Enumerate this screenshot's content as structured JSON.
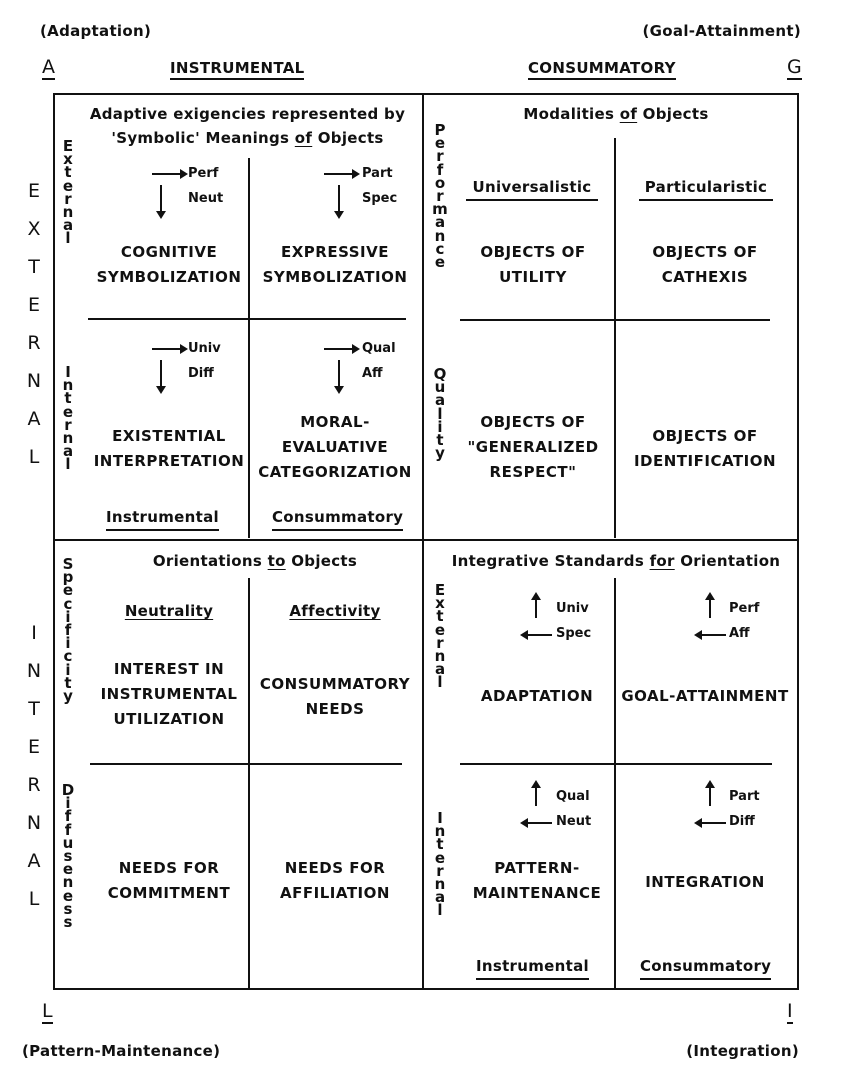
{
  "corners": {
    "top_left_paren": "(Adaptation)",
    "top_right_paren": "(Goal-Attainment)",
    "top_left_letter": "A",
    "top_right_letter": "G",
    "bottom_left_letter": "L",
    "bottom_right_letter": "I",
    "bottom_left_paren": "(Pattern-Maintenance)",
    "bottom_right_paren": "(Integration)"
  },
  "top_headers": {
    "left": "INSTRUMENTAL",
    "right": "CONSUMMATORY"
  },
  "side_labels": {
    "upper": "EXTERNAL",
    "lower": "INTERNAL"
  },
  "q1": {
    "title_line1": "Adaptive exigencies represented by",
    "title_line2_pre": "'Symbolic' Meanings ",
    "title_line2_u": "of",
    "title_line2_post": " Objects",
    "vert_top": "External",
    "vert_bottom": "Internal",
    "cells": [
      {
        "code1": "Perf",
        "code2": "Neut",
        "text1": "COGNITIVE",
        "text2": "SYMBOLIZATION"
      },
      {
        "code1": "Part",
        "code2": "Spec",
        "text1": "EXPRESSIVE",
        "text2": "SYMBOLIZATION"
      },
      {
        "code1": "Univ",
        "code2": "Diff",
        "text1": "EXISTENTIAL",
        "text2": "INTERPRETATION"
      },
      {
        "code1": "Qual",
        "code2": "Aff",
        "text1": "MORAL-",
        "text2": "EVALUATIVE",
        "text3": "CATEGORIZATION"
      }
    ],
    "foot_left": "Instrumental",
    "foot_right": "Consummatory"
  },
  "q2": {
    "title_pre": "Modalities ",
    "title_u": "of",
    "title_post": " Objects",
    "vert_top": "Performance",
    "vert_bottom": "Quality",
    "head_left": "Universalistic",
    "head_right": "Particularistic",
    "cells": [
      {
        "text1": "OBJECTS OF",
        "text2": "UTILITY"
      },
      {
        "text1": "OBJECTS OF",
        "text2": "CATHEXIS"
      },
      {
        "text1": "OBJECTS OF",
        "text2": "\"GENERALIZED",
        "text3": "RESPECT\""
      },
      {
        "text1": "OBJECTS OF",
        "text2": "IDENTIFICATION"
      }
    ]
  },
  "q3": {
    "title_pre": "Orientations ",
    "title_u": "to",
    "title_post": " Objects",
    "vert_top": "Specificity",
    "vert_bottom": "Diffuseness",
    "head_left": "Neutrality",
    "head_right": "Affectivity",
    "cells": [
      {
        "text1": "INTEREST IN",
        "text2": "INSTRUMENTAL",
        "text3": "UTILIZATION"
      },
      {
        "text1": "CONSUMMATORY",
        "text2": "NEEDS"
      },
      {
        "text1": "NEEDS FOR",
        "text2": "COMMITMENT"
      },
      {
        "text1": "NEEDS FOR",
        "text2": "AFFILIATION"
      }
    ]
  },
  "q4": {
    "title_pre": "Integrative Standards ",
    "title_u": "for",
    "title_post": " Orientation",
    "vert_top": "External",
    "vert_bottom": "Internal",
    "cells": [
      {
        "code1": "Univ",
        "code2": "Spec",
        "text1": "ADAPTATION"
      },
      {
        "code1": "Perf",
        "code2": "Aff",
        "text1": "GOAL-ATTAINMENT"
      },
      {
        "code1": "Qual",
        "code2": "Neut",
        "text1": "PATTERN-",
        "text2": "MAINTENANCE"
      },
      {
        "code1": "Part",
        "code2": "Diff",
        "text1": "INTEGRATION"
      }
    ],
    "foot_left": "Instrumental",
    "foot_right": "Consummatory"
  }
}
